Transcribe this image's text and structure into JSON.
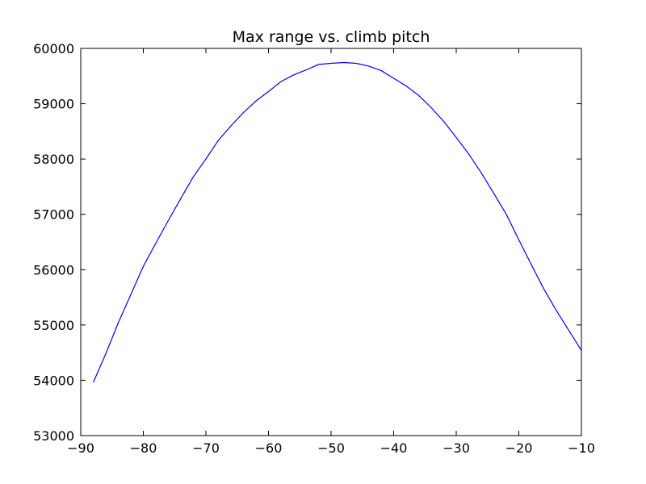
{
  "chart_data": {
    "type": "line",
    "title": "Max range vs. climb pitch",
    "xlabel": "",
    "ylabel": "",
    "xlim": [
      -90,
      -10
    ],
    "ylim": [
      53000,
      60000
    ],
    "grid": false,
    "xticks": [
      -90,
      -80,
      -70,
      -60,
      -50,
      -40,
      -30,
      -20,
      -10
    ],
    "xtick_labels": [
      "−90",
      "−80",
      "−70",
      "−60",
      "−50",
      "−40",
      "−30",
      "−20",
      "−10"
    ],
    "yticks": [
      53000,
      54000,
      55000,
      56000,
      57000,
      58000,
      59000,
      60000
    ],
    "ytick_labels": [
      "53000",
      "54000",
      "55000",
      "56000",
      "57000",
      "58000",
      "59000",
      "60000"
    ],
    "series": [
      {
        "color": "#0000ff",
        "x": [
          -88,
          -86,
          -84,
          -82,
          -80,
          -78,
          -76,
          -74,
          -72,
          -70,
          -68,
          -66,
          -64,
          -62,
          -60,
          -58,
          -56,
          -54,
          -52,
          -50,
          -48,
          -46,
          -44,
          -42,
          -40,
          -38,
          -36,
          -34,
          -32,
          -30,
          -28,
          -26,
          -24,
          -22,
          -20,
          -18,
          -16,
          -14,
          -12,
          -10
        ],
        "y": [
          53960,
          54480,
          55040,
          55550,
          56060,
          56480,
          56890,
          57290,
          57680,
          58000,
          58340,
          58600,
          58840,
          59050,
          59220,
          59400,
          59520,
          59610,
          59710,
          59730,
          59745,
          59730,
          59680,
          59600,
          59460,
          59320,
          59150,
          58930,
          58680,
          58390,
          58090,
          57750,
          57380,
          57000,
          56540,
          56090,
          55650,
          55260,
          54900,
          54540
        ]
      }
    ]
  }
}
